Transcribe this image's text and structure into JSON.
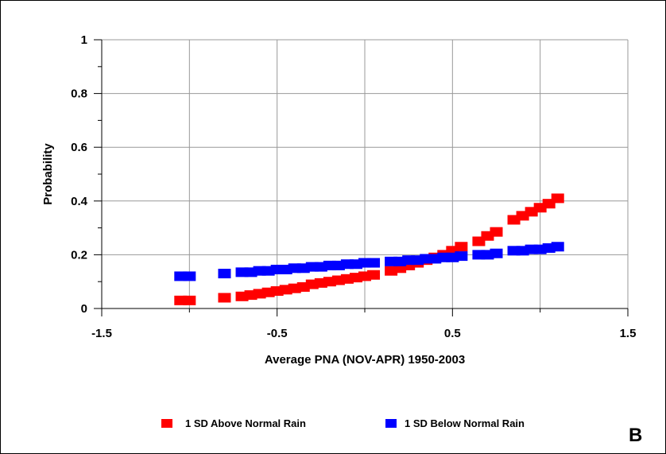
{
  "chart_data": {
    "type": "scatter",
    "xlabel": "Average PNA (NOV-APR) 1950-2003",
    "ylabel": "Probability",
    "xlim": [
      -1.5,
      1.5
    ],
    "ylim": [
      0,
      1
    ],
    "x_ticks": [
      "-1.5",
      "-0.5",
      "0.5",
      "1.5"
    ],
    "x_tick_values": [
      -1.5,
      -0.5,
      0.5,
      1.5
    ],
    "y_ticks": [
      "0",
      "0.2",
      "0.4",
      "0.6",
      "0.8",
      "1"
    ],
    "y_tick_values": [
      0,
      0.2,
      0.4,
      0.6,
      0.8,
      1
    ],
    "grid": true,
    "legend_position": "bottom",
    "panel_label": "B",
    "series": [
      {
        "name": "1 SD Above Normal Rain",
        "color": "#ff0000",
        "x": [
          -1.05,
          -1.0,
          -0.8,
          -0.7,
          -0.65,
          -0.6,
          -0.55,
          -0.5,
          -0.45,
          -0.4,
          -0.35,
          -0.3,
          -0.25,
          -0.2,
          -0.15,
          -0.1,
          -0.05,
          0.0,
          0.05,
          0.15,
          0.2,
          0.25,
          0.3,
          0.35,
          0.4,
          0.45,
          0.5,
          0.55,
          0.65,
          0.7,
          0.75,
          0.85,
          0.9,
          0.95,
          1.0,
          1.05,
          1.1
        ],
        "y": [
          0.03,
          0.03,
          0.04,
          0.045,
          0.05,
          0.055,
          0.06,
          0.065,
          0.07,
          0.075,
          0.08,
          0.09,
          0.095,
          0.1,
          0.105,
          0.11,
          0.115,
          0.12,
          0.125,
          0.14,
          0.15,
          0.16,
          0.17,
          0.18,
          0.19,
          0.2,
          0.215,
          0.23,
          0.25,
          0.27,
          0.285,
          0.33,
          0.345,
          0.36,
          0.375,
          0.39,
          0.41
        ]
      },
      {
        "name": "1 SD Below Normal Rain",
        "color": "#0000ff",
        "x": [
          -1.05,
          -1.0,
          -0.8,
          -0.7,
          -0.65,
          -0.6,
          -0.55,
          -0.5,
          -0.45,
          -0.4,
          -0.35,
          -0.3,
          -0.25,
          -0.2,
          -0.15,
          -0.1,
          -0.05,
          0.0,
          0.05,
          0.15,
          0.2,
          0.25,
          0.3,
          0.35,
          0.4,
          0.45,
          0.5,
          0.55,
          0.65,
          0.7,
          0.75,
          0.85,
          0.9,
          0.95,
          1.0,
          1.05,
          1.1
        ],
        "y": [
          0.12,
          0.12,
          0.13,
          0.135,
          0.135,
          0.14,
          0.14,
          0.145,
          0.145,
          0.15,
          0.15,
          0.155,
          0.155,
          0.16,
          0.16,
          0.165,
          0.165,
          0.17,
          0.17,
          0.175,
          0.175,
          0.18,
          0.18,
          0.185,
          0.185,
          0.19,
          0.19,
          0.195,
          0.2,
          0.2,
          0.205,
          0.215,
          0.215,
          0.22,
          0.22,
          0.225,
          0.23
        ]
      }
    ]
  }
}
